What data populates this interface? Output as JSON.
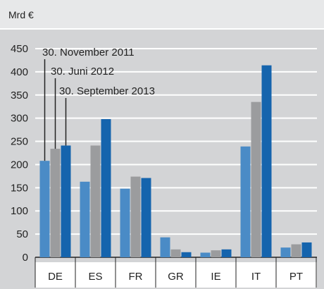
{
  "chart_data": {
    "type": "bar",
    "unit_label": "Mrd €",
    "categories": [
      "DE",
      "ES",
      "FR",
      "GR",
      "IE",
      "IT",
      "PT"
    ],
    "series": [
      {
        "name": "30. November 2011",
        "color": "#4a8bc6",
        "values": [
          208,
          163,
          148,
          43,
          10,
          239,
          21
        ]
      },
      {
        "name": "30. Juni 2012",
        "color": "#9b9c9e",
        "values": [
          234,
          241,
          174,
          17,
          15,
          335,
          28
        ]
      },
      {
        "name": "30. September 2013",
        "color": "#1564ad",
        "values": [
          241,
          298,
          171,
          11,
          17,
          414,
          32
        ]
      }
    ],
    "ylim": [
      0,
      450
    ],
    "yticks": [
      0,
      50,
      100,
      150,
      200,
      250,
      300,
      350,
      400,
      450
    ],
    "grid": true,
    "legend": "annotations-top-left"
  }
}
